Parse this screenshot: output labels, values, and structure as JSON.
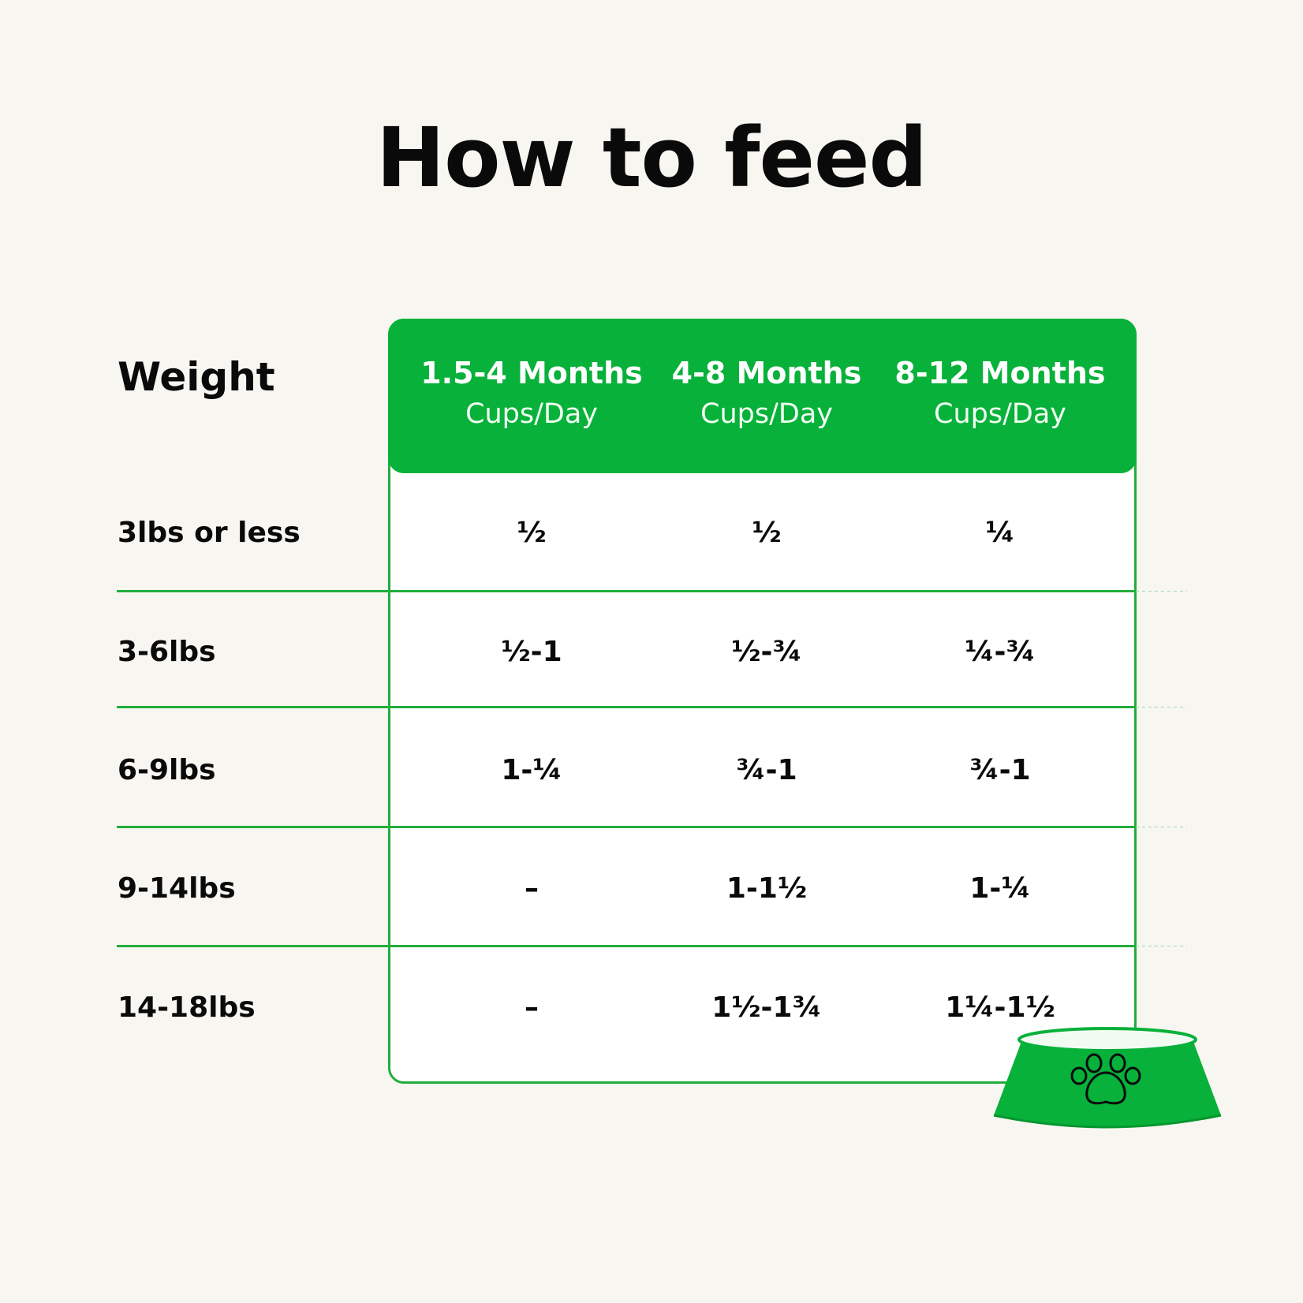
{
  "title": "How to feed",
  "colors": {
    "brand_green": "#07b13a",
    "background": "#f8f6f0"
  },
  "table": {
    "weight_header": "Weight",
    "columns": [
      {
        "months": "1.5-4 Months",
        "unit": "Cups/Day"
      },
      {
        "months": "4-8 Months",
        "unit": "Cups/Day"
      },
      {
        "months": "8-12 Months",
        "unit": "Cups/Day"
      }
    ],
    "rows": [
      {
        "weight": "3lbs or less",
        "values": [
          "½",
          "½",
          "¼"
        ]
      },
      {
        "weight": "3-6lbs",
        "values": [
          "½-1",
          "½-¾",
          "¼-¾"
        ]
      },
      {
        "weight": "6-9lbs",
        "values": [
          "1-¼",
          "¾-1",
          "¾-1"
        ]
      },
      {
        "weight": "9-14lbs",
        "values": [
          "–",
          "1-1½",
          "1-¼"
        ]
      },
      {
        "weight": "14-18lbs",
        "values": [
          "–",
          "1½-1¾",
          "1¼-1½"
        ]
      }
    ]
  },
  "decoration": {
    "bowl_icon": "dog-bowl-icon",
    "paw_icon": "paw-print-icon"
  }
}
